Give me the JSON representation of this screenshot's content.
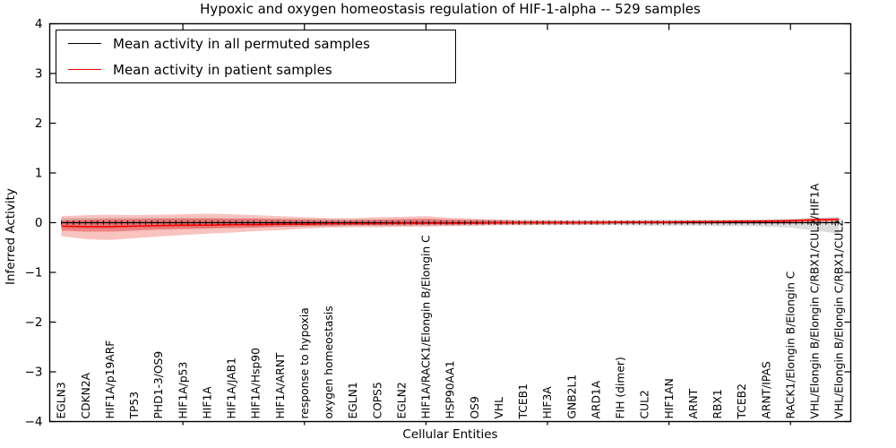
{
  "title": "Hypoxic and oxygen homeostasis regulation of HIF-1-alpha -- 529 samples",
  "chart_data": {
    "type": "line",
    "title": "Hypoxic and oxygen homeostasis regulation of HIF-1-alpha -- 529 samples",
    "xlabel": "Cellular Entities",
    "ylabel": "Inferred Activity",
    "ylim": [
      -4,
      4
    ],
    "y_ticks": [
      4,
      3,
      2,
      1,
      0,
      -1,
      -2,
      -3,
      -4
    ],
    "x_major_tick_indices": [
      5,
      10,
      15,
      20,
      25,
      30
    ],
    "grid": false,
    "legend_position": "upper left",
    "categories": [
      "EGLN3",
      "CDKN2A",
      "HIF1A/p19ARF",
      "TP53",
      "PHD1-3/OS9",
      "HIF1A/p53",
      "HIF1A",
      "HIF1A/JAB1",
      "HIF1A/Hsp90",
      "HIF1A/ARNT",
      "response to hypoxia",
      "oxygen homeostasis",
      "EGLN1",
      "COPS5",
      "EGLN2",
      "HIF1A/RACK1/Elongin B/Elongin C",
      "HSP90AA1",
      "OS9",
      "VHL",
      "TCEB1",
      "HIF3A",
      "GNB2L1",
      "ARD1A",
      "FIH (dimer)",
      "CUL2",
      "HIF1AN",
      "ARNT",
      "RBX1",
      "TCEB2",
      "ARNT/IPAS",
      "RACK1/Elongin B/Elongin C",
      "VHL/Elongin B/Elongin C/RBX1/CUL2/HIF1A",
      "VHL/Elongin B/Elongin C/RBX1/CUL2"
    ],
    "legend": [
      {
        "label": "Mean activity in all permuted samples",
        "color": "#000000"
      },
      {
        "label": "Mean activity in patient samples",
        "color": "#ff0000"
      }
    ],
    "series": [
      {
        "name": "Mean activity in all permuted samples",
        "color": "#000000",
        "width": 1.3,
        "values": [
          0,
          0,
          0,
          0,
          0,
          0,
          0,
          0,
          0,
          0,
          0,
          0,
          0,
          0,
          0,
          0,
          0,
          0,
          0,
          0,
          0,
          0,
          0,
          0,
          0,
          0,
          0,
          0,
          0,
          0,
          0,
          0,
          0
        ]
      },
      {
        "name": "Mean activity in patient samples",
        "color": "#ff0000",
        "width": 1.6,
        "values": [
          -0.07,
          -0.08,
          -0.08,
          -0.07,
          -0.06,
          -0.05,
          -0.05,
          -0.04,
          -0.04,
          -0.03,
          -0.03,
          -0.02,
          -0.02,
          -0.02,
          -0.01,
          -0.01,
          -0.01,
          -0.01,
          0,
          0,
          0,
          0,
          0,
          0.01,
          0.01,
          0.01,
          0.02,
          0.02,
          0.03,
          0.03,
          0.04,
          0.06,
          0.07
        ]
      }
    ],
    "bands": [
      {
        "name": "permuted-range",
        "color": "#bfbfbf",
        "opacity": 0.55,
        "lo": [
          -0.12,
          -0.12,
          -0.12,
          -0.11,
          -0.11,
          -0.1,
          -0.1,
          -0.1,
          -0.09,
          -0.09,
          -0.08,
          -0.08,
          -0.07,
          -0.07,
          -0.07,
          -0.06,
          -0.06,
          -0.06,
          -0.05,
          -0.05,
          -0.05,
          -0.05,
          -0.05,
          -0.05,
          -0.06,
          -0.06,
          -0.06,
          -0.07,
          -0.07,
          -0.08,
          -0.1,
          -0.16,
          -0.22
        ],
        "hi": [
          0.1,
          0.1,
          0.1,
          0.1,
          0.1,
          0.1,
          0.09,
          0.09,
          0.09,
          0.08,
          0.08,
          0.08,
          0.07,
          0.07,
          0.07,
          0.06,
          0.06,
          0.06,
          0.06,
          0.05,
          0.05,
          0.05,
          0.05,
          0.05,
          0.06,
          0.06,
          0.06,
          0.06,
          0.07,
          0.07,
          0.08,
          0.1,
          0.12
        ]
      },
      {
        "name": "patient-outer",
        "color": "#f0615a",
        "opacity": 0.38,
        "lo": [
          -0.27,
          -0.33,
          -0.35,
          -0.31,
          -0.28,
          -0.25,
          -0.22,
          -0.2,
          -0.17,
          -0.15,
          -0.12,
          -0.1,
          -0.09,
          -0.09,
          -0.08,
          -0.08,
          -0.07,
          -0.06,
          -0.05,
          -0.05,
          -0.04,
          -0.04,
          -0.04,
          -0.03,
          -0.03,
          -0.03,
          -0.03,
          -0.02,
          -0.02,
          -0.02,
          -0.02,
          -0.01,
          -0.01
        ],
        "hi": [
          0.13,
          0.15,
          0.16,
          0.15,
          0.16,
          0.17,
          0.18,
          0.17,
          0.15,
          0.13,
          0.11,
          0.09,
          0.09,
          0.11,
          0.12,
          0.13,
          0.1,
          0.08,
          0.06,
          0.05,
          0.05,
          0.04,
          0.04,
          0.04,
          0.04,
          0.04,
          0.04,
          0.04,
          0.04,
          0.05,
          0.06,
          0.08,
          0.09
        ]
      },
      {
        "name": "patient-inner",
        "color": "#e03535",
        "opacity": 0.45,
        "lo": [
          -0.16,
          -0.18,
          -0.18,
          -0.16,
          -0.14,
          -0.13,
          -0.12,
          -0.11,
          -0.1,
          -0.08,
          -0.07,
          -0.06,
          -0.05,
          -0.05,
          -0.05,
          -0.04,
          -0.04,
          -0.03,
          -0.03,
          -0.02,
          -0.02,
          -0.02,
          -0.02,
          -0.01,
          -0.01,
          -0.01,
          0,
          0,
          0,
          0.01,
          0.01,
          0.03,
          0.04
        ],
        "hi": [
          0.05,
          0.06,
          0.07,
          0.07,
          0.08,
          0.08,
          0.09,
          0.08,
          0.08,
          0.07,
          0.06,
          0.05,
          0.05,
          0.06,
          0.07,
          0.08,
          0.06,
          0.05,
          0.04,
          0.03,
          0.03,
          0.03,
          0.03,
          0.03,
          0.03,
          0.03,
          0.03,
          0.04,
          0.04,
          0.05,
          0.05,
          0.07,
          0.08
        ]
      }
    ]
  },
  "colors": {
    "frame": "#000000",
    "background": "#ffffff",
    "permuted_line": "#000000",
    "patient_line": "#ff0000"
  }
}
